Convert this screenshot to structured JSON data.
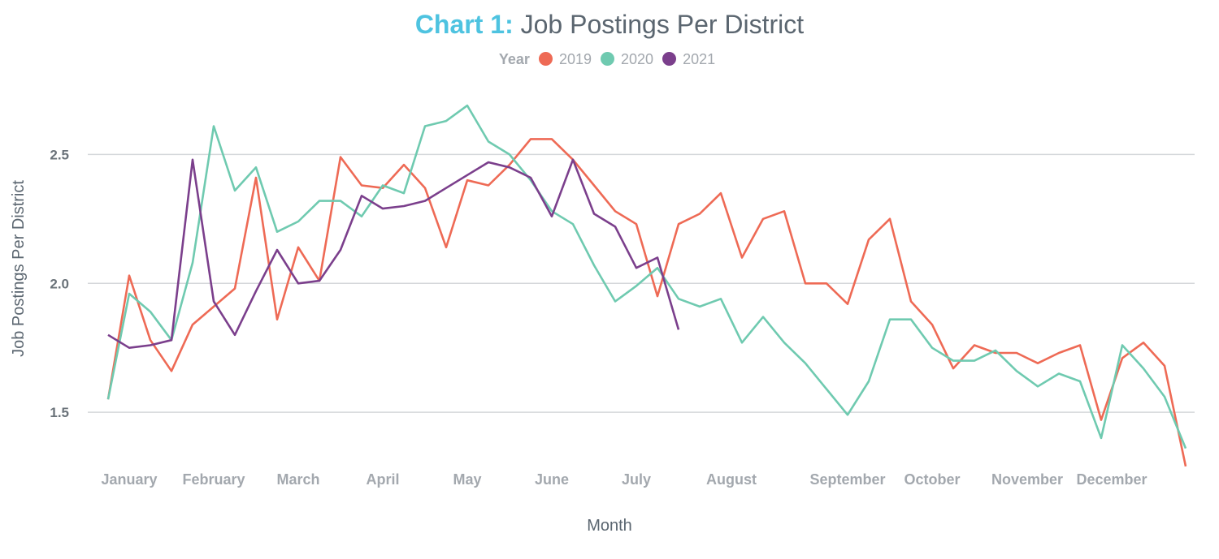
{
  "chart_data": {
    "type": "line",
    "title_prefix": "Chart 1:",
    "title": "Job Postings Per District",
    "xlabel": "Month",
    "ylabel": "Job Postings Per District",
    "legend_title": "Year",
    "legend_position": "top-center",
    "grid": "horizontal",
    "x_unit": "week",
    "xlim": [
      1,
      53
    ],
    "ylim": [
      1.28,
      2.75
    ],
    "y_ticks": [
      {
        "label": "1.5",
        "value": 1.5
      },
      {
        "label": "2.0",
        "value": 2.0
      },
      {
        "label": "2.5",
        "value": 2.5
      }
    ],
    "x_ticks": [
      {
        "label": "January",
        "week": 2
      },
      {
        "label": "February",
        "week": 6
      },
      {
        "label": "March",
        "week": 10
      },
      {
        "label": "April",
        "week": 14
      },
      {
        "label": "May",
        "week": 18
      },
      {
        "label": "June",
        "week": 22
      },
      {
        "label": "July",
        "week": 26
      },
      {
        "label": "August",
        "week": 30.5
      },
      {
        "label": "September",
        "week": 36
      },
      {
        "label": "October",
        "week": 40
      },
      {
        "label": "November",
        "week": 44.5
      },
      {
        "label": "December",
        "week": 48.5
      }
    ],
    "series": [
      {
        "name": "2019",
        "color": "#ee6a55",
        "x": [
          1,
          2,
          3,
          4,
          5,
          6,
          7,
          8,
          9,
          10,
          11,
          12,
          13,
          14,
          15,
          16,
          17,
          18,
          19,
          20,
          21,
          22,
          23,
          24,
          25,
          26,
          27,
          28,
          29,
          30,
          31,
          32,
          33,
          34,
          35,
          36,
          37,
          38,
          39,
          40,
          41,
          42,
          43,
          44,
          45,
          46,
          47,
          48,
          49,
          50,
          51,
          52
        ],
        "values": [
          1.55,
          2.03,
          1.78,
          1.66,
          1.84,
          1.91,
          1.98,
          2.41,
          1.86,
          2.14,
          2.01,
          2.49,
          2.38,
          2.37,
          2.46,
          2.37,
          2.14,
          2.4,
          2.38,
          2.46,
          2.56,
          2.56,
          2.48,
          2.38,
          2.28,
          2.23,
          1.95,
          2.23,
          2.27,
          2.35,
          2.1,
          2.25,
          2.28,
          2.0,
          2.0,
          1.92,
          2.17,
          2.25,
          1.93,
          1.84,
          1.67,
          1.76,
          1.73,
          1.73,
          1.69,
          1.73,
          1.76,
          1.47,
          1.71,
          1.77,
          1.68,
          1.29
        ]
      },
      {
        "name": "2020",
        "color": "#6fcab0",
        "x": [
          1,
          2,
          3,
          4,
          5,
          6,
          7,
          8,
          9,
          10,
          11,
          12,
          13,
          14,
          15,
          16,
          17,
          18,
          19,
          20,
          21,
          22,
          23,
          24,
          25,
          26,
          27,
          28,
          29,
          30,
          31,
          32,
          33,
          34,
          35,
          36,
          37,
          38,
          39,
          40,
          41,
          42,
          43,
          44,
          45,
          46,
          47,
          48,
          49,
          50,
          51,
          52
        ],
        "values": [
          1.55,
          1.96,
          1.89,
          1.78,
          2.08,
          2.61,
          2.36,
          2.45,
          2.2,
          2.24,
          2.32,
          2.32,
          2.26,
          2.38,
          2.35,
          2.61,
          2.63,
          2.69,
          2.55,
          2.5,
          2.4,
          2.28,
          2.23,
          2.07,
          1.93,
          1.99,
          2.06,
          1.94,
          1.91,
          1.94,
          1.77,
          1.87,
          1.77,
          1.69,
          1.59,
          1.49,
          1.62,
          1.86,
          1.86,
          1.75,
          1.7,
          1.7,
          1.74,
          1.66,
          1.6,
          1.65,
          1.62,
          1.4,
          1.76,
          1.67,
          1.56,
          1.36
        ]
      },
      {
        "name": "2021",
        "color": "#7b3f8c",
        "x": [
          1,
          2,
          3,
          4,
          5,
          6,
          7,
          8,
          9,
          10,
          11,
          12,
          13,
          14,
          15,
          16,
          17,
          18,
          19,
          20,
          21,
          22,
          23,
          24,
          25,
          26,
          27,
          28
        ],
        "values": [
          1.8,
          1.75,
          1.76,
          1.78,
          2.48,
          1.93,
          1.8,
          1.97,
          2.13,
          2.0,
          2.01,
          2.13,
          2.34,
          2.29,
          2.3,
          2.32,
          2.37,
          2.42,
          2.47,
          2.45,
          2.41,
          2.26,
          2.48,
          2.27,
          2.22,
          2.06,
          2.1,
          1.82
        ]
      }
    ]
  }
}
